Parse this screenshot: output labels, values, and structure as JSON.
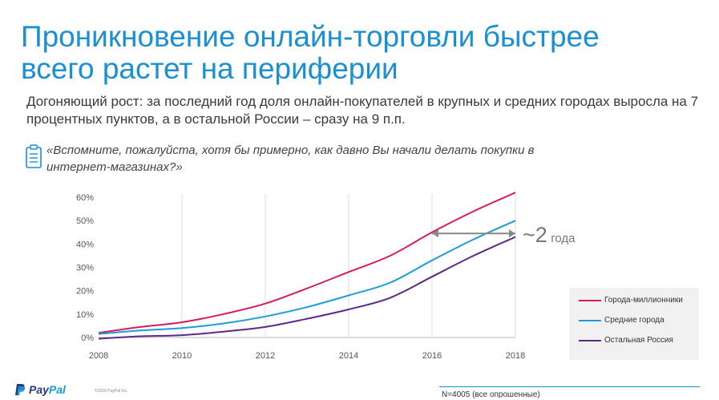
{
  "title_line1": "Проникновение онлайн-торговли быстрее",
  "title_line2": "всего растет на периферии",
  "subtitle": "Догоняющий рост: за последний год доля онлайн-покупателей в крупных и средних городах выросла на 7 процентных пунктов, а в остальной России – сразу на 9 п.п.",
  "question": "«Вспомните, пожалуйста, хотя бы примерно, как давно Вы начали делать покупки в интернет-магазинах?»",
  "icon": "clipboard-icon",
  "annotation": {
    "big": "~2",
    "small": "года"
  },
  "note": "N=4005 (все опрошенные)",
  "logo": {
    "pay": "Pay",
    "pal": "Pal",
    "icon": "paypal-p-icon"
  },
  "copyright": "©2018 PayPal Inc.",
  "chart_data": {
    "type": "line",
    "title": "",
    "xlabel": "",
    "ylabel": "",
    "x": [
      2008,
      2009,
      2010,
      2011,
      2012,
      2013,
      2014,
      2015,
      2016,
      2017,
      2018
    ],
    "xticks": [
      "2008",
      "2010",
      "2012",
      "2014",
      "2016",
      "2018"
    ],
    "yticks": [
      "0%",
      "10%",
      "20%",
      "30%",
      "40%",
      "50%",
      "60%"
    ],
    "ylim": [
      0,
      60
    ],
    "xlim": [
      2008,
      2018
    ],
    "grid": "vertical",
    "legend_position": "bottom-right",
    "series": [
      {
        "name": "Города-миллионники",
        "color": "#d81b60",
        "values": [
          2,
          4.5,
          6.5,
          10,
          14.5,
          21,
          28,
          35,
          45,
          54,
          62
        ]
      },
      {
        "name": "Средние города",
        "color": "#1f9bd7",
        "values": [
          1.5,
          3,
          4,
          6,
          9,
          13,
          18,
          23.5,
          33,
          42,
          50
        ]
      },
      {
        "name": "Остальная Россия",
        "color": "#5b2a86",
        "values": [
          -0.5,
          0.5,
          1,
          2.5,
          4.5,
          8,
          12,
          17,
          26,
          35,
          43
        ]
      }
    ],
    "annotation_arrow": {
      "from_x": 2016,
      "to_x": 2018,
      "y": 44.5
    }
  }
}
